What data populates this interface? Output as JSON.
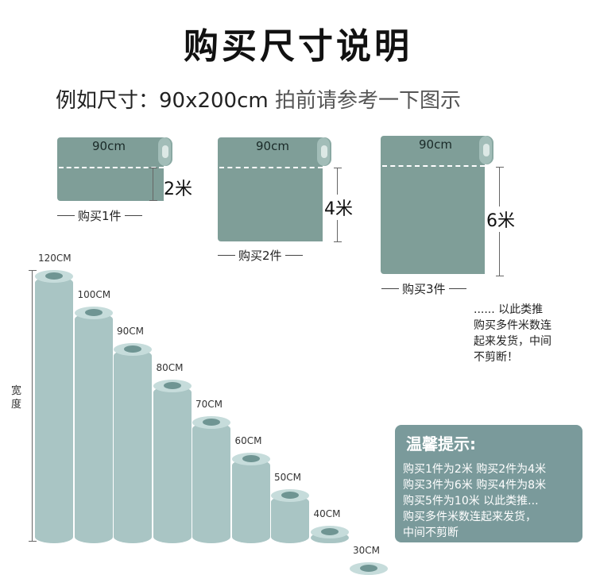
{
  "title": "购买尺寸说明",
  "subtitle": {
    "main": "例如尺寸：90x200cm",
    "hint": "拍前请参考一下图示"
  },
  "examples": [
    {
      "width": "90cm",
      "length": "2米",
      "buy": "购买1件"
    },
    {
      "width": "90cm",
      "length": "4米",
      "buy": "购买2件"
    },
    {
      "width": "90cm",
      "length": "6米",
      "buy": "购买3件"
    }
  ],
  "note": {
    "dots": "......",
    "line1": "以此类推",
    "line2": "购买多件米数连",
    "line3": "起来发货，中间",
    "line4": "不剪断！"
  },
  "width_axis_label": "宽度",
  "width_rolls": [
    "120CM",
    "100CM",
    "90CM",
    "80CM",
    "70CM",
    "60CM",
    "50CM",
    "40CM",
    "30CM"
  ],
  "tip": {
    "title": "温馨提示:",
    "lines": [
      "购买1件为2米  购买2件为4米",
      "购买3件为6米  购买4件为8米",
      "购买5件为10米  以此类推...",
      "购买多件米数连起来发货，",
      "中间不剪断"
    ]
  },
  "colors": {
    "roll_body": "#7f9e98",
    "roll_cap": "#a2bdb8",
    "cylinder": "#a9c5c4",
    "tip_bg": "#7a9a9b"
  }
}
